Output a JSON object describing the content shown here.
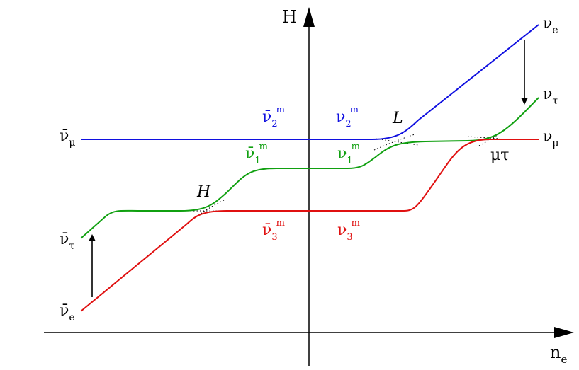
{
  "axes": {
    "y_label": "H",
    "x_label": "n",
    "x_label_sub": "e"
  },
  "labels": {
    "antinu_mu": "ν̄",
    "antinu_mu_sub": "μ",
    "antinu_tau": "ν̄",
    "antinu_tau_sub": "τ",
    "antinu_e": "ν̄",
    "antinu_e_sub": "e",
    "nu_e": "ν",
    "nu_e_sub": "e",
    "nu_tau": "ν",
    "nu_tau_sub": "τ",
    "nu_mu": "ν",
    "nu_mu_sub": "μ",
    "anti2m": "ν̄",
    "anti2m_sub": "2",
    "anti2m_sup": "m",
    "nu2m": "ν",
    "nu2m_sub": "2",
    "nu2m_sup": "m",
    "anti1m": "ν̄",
    "anti1m_sub": "1",
    "anti1m_sup": "m",
    "nu1m": "ν",
    "nu1m_sub": "1",
    "nu1m_sup": "m",
    "anti3m": "ν̄",
    "anti3m_sub": "3",
    "anti3m_sup": "m",
    "nu3m": "ν",
    "nu3m_sub": "3",
    "nu3m_sup": "m",
    "res_L": "L",
    "res_H": "H",
    "res_mutau": "μτ"
  },
  "colors": {
    "blue": "#1010e0",
    "green": "#10a010",
    "red": "#e01010",
    "black": "#000000"
  }
}
